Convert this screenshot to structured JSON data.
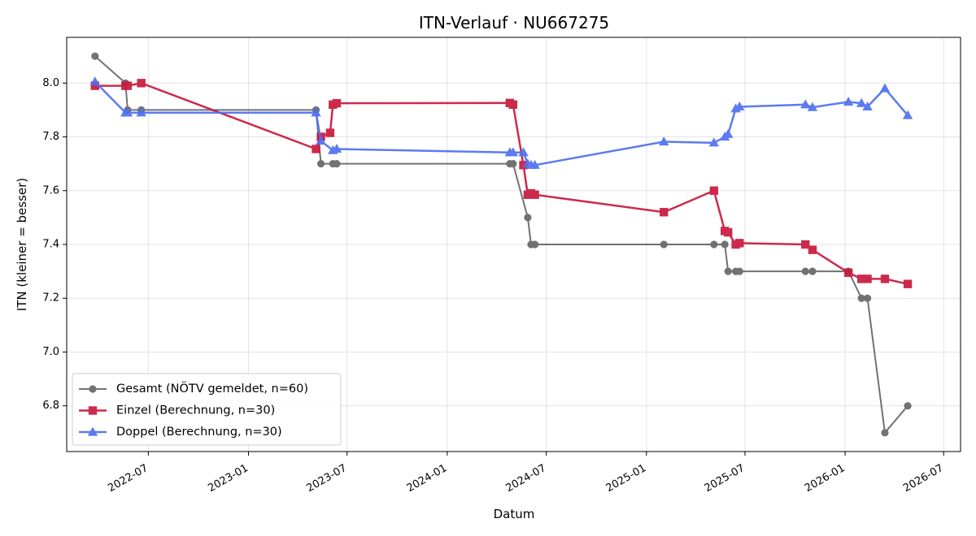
{
  "chart_data": {
    "type": "line",
    "title": "ITN-Verlauf · NU667275",
    "xlabel": "Datum",
    "ylabel": "ITN  (kleiner = besser)",
    "xlim": [
      "2022-02-01",
      "2026-08-01"
    ],
    "ylim": [
      6.63,
      8.17
    ],
    "x_ticks": [
      "2022-07-01",
      "2023-01-01",
      "2023-07-01",
      "2024-01-01",
      "2024-07-01",
      "2025-01-01",
      "2025-07-01",
      "2026-01-01",
      "2026-07-01"
    ],
    "x_tick_labels": [
      "2022-07",
      "2023-01",
      "2023-07",
      "2024-01",
      "2024-07",
      "2025-01",
      "2025-07",
      "2026-01",
      "2026-07"
    ],
    "y_ticks": [
      6.8,
      7.0,
      7.2,
      7.4,
      7.6,
      7.8,
      8.0
    ],
    "y_tick_labels": [
      "6.8",
      "7.0",
      "7.2",
      "7.4",
      "7.6",
      "7.8",
      "8.0"
    ],
    "grid": true,
    "legend_position": "lower-left",
    "series": [
      {
        "name": "Gesamt (NÖTV gemeldet, n=60)",
        "color": "#444444",
        "marker": "circle",
        "points": [
          [
            "2022-03-25",
            8.1
          ],
          [
            "2022-05-20",
            8.0
          ],
          [
            "2022-05-24",
            7.9
          ],
          [
            "2022-06-18",
            7.9
          ],
          [
            "2023-05-05",
            7.9
          ],
          [
            "2023-05-14",
            7.7
          ],
          [
            "2023-06-05",
            7.7
          ],
          [
            "2023-06-12",
            7.7
          ],
          [
            "2024-04-25",
            7.7
          ],
          [
            "2024-05-01",
            7.7
          ],
          [
            "2024-05-28",
            7.5
          ],
          [
            "2024-06-03",
            7.4
          ],
          [
            "2024-06-10",
            7.4
          ],
          [
            "2025-02-02",
            7.4
          ],
          [
            "2025-05-05",
            7.4
          ],
          [
            "2025-05-25",
            7.4
          ],
          [
            "2025-05-31",
            7.3
          ],
          [
            "2025-06-14",
            7.3
          ],
          [
            "2025-06-21",
            7.3
          ],
          [
            "2025-10-20",
            7.3
          ],
          [
            "2025-11-02",
            7.3
          ],
          [
            "2026-01-07",
            7.3
          ],
          [
            "2026-01-31",
            7.2
          ],
          [
            "2026-02-11",
            7.2
          ],
          [
            "2026-03-15",
            6.7
          ],
          [
            "2026-04-26",
            6.8
          ]
        ]
      },
      {
        "name": "Einzel (Berechnung, n=30)",
        "color": "#c8193c",
        "marker": "square",
        "points": [
          [
            "2022-03-25",
            7.99
          ],
          [
            "2022-05-20",
            7.99
          ],
          [
            "2022-05-24",
            7.99
          ],
          [
            "2022-06-18",
            8.0
          ],
          [
            "2023-05-05",
            7.755
          ],
          [
            "2023-05-14",
            7.8
          ],
          [
            "2023-05-31",
            7.815
          ],
          [
            "2023-06-05",
            7.92
          ],
          [
            "2023-06-12",
            7.925
          ],
          [
            "2024-04-25",
            7.926
          ],
          [
            "2024-05-01",
            7.92
          ],
          [
            "2024-05-20",
            7.695
          ],
          [
            "2024-05-28",
            7.585
          ],
          [
            "2024-06-03",
            7.59
          ],
          [
            "2024-06-10",
            7.585
          ],
          [
            "2025-02-02",
            7.52
          ],
          [
            "2025-05-05",
            7.6
          ],
          [
            "2025-05-25",
            7.45
          ],
          [
            "2025-05-31",
            7.445
          ],
          [
            "2025-06-14",
            7.4
          ],
          [
            "2025-06-21",
            7.405
          ],
          [
            "2025-10-20",
            7.4
          ],
          [
            "2025-11-02",
            7.38
          ],
          [
            "2026-01-07",
            7.295
          ],
          [
            "2026-01-31",
            7.272
          ],
          [
            "2026-02-11",
            7.272
          ],
          [
            "2026-03-15",
            7.272
          ],
          [
            "2026-04-26",
            7.253
          ]
        ]
      },
      {
        "name": "Doppel (Berechnung, n=30)",
        "color": "#4f6ff0",
        "marker": "triangle",
        "points": [
          [
            "2022-03-25",
            8.005
          ],
          [
            "2022-05-20",
            7.89
          ],
          [
            "2022-05-24",
            7.89
          ],
          [
            "2022-06-18",
            7.89
          ],
          [
            "2023-05-05",
            7.89
          ],
          [
            "2023-05-14",
            7.785
          ],
          [
            "2023-06-05",
            7.75
          ],
          [
            "2023-06-12",
            7.755
          ],
          [
            "2024-04-25",
            7.742
          ],
          [
            "2024-05-01",
            7.742
          ],
          [
            "2024-05-20",
            7.742
          ],
          [
            "2024-05-28",
            7.7
          ],
          [
            "2024-06-03",
            7.695
          ],
          [
            "2024-06-10",
            7.695
          ],
          [
            "2025-02-02",
            7.782
          ],
          [
            "2025-05-05",
            7.778
          ],
          [
            "2025-05-25",
            7.8
          ],
          [
            "2025-05-31",
            7.81
          ],
          [
            "2025-06-14",
            7.905
          ],
          [
            "2025-06-21",
            7.912
          ],
          [
            "2025-10-20",
            7.92
          ],
          [
            "2025-11-02",
            7.91
          ],
          [
            "2026-01-07",
            7.93
          ],
          [
            "2026-01-31",
            7.925
          ],
          [
            "2026-02-11",
            7.912
          ],
          [
            "2026-03-15",
            7.98
          ],
          [
            "2026-04-26",
            7.88
          ]
        ]
      }
    ]
  }
}
